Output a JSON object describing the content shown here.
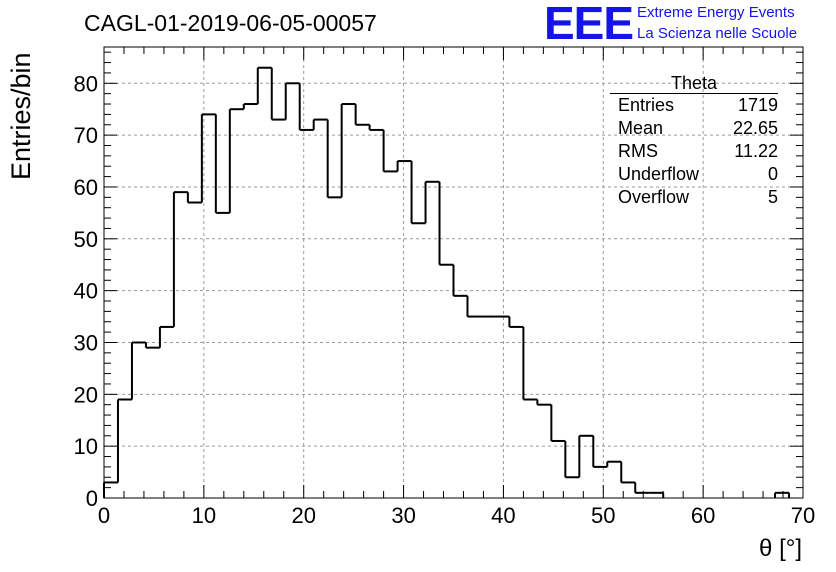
{
  "header": {
    "run_title": "CAGL-01-2019-06-05-00057",
    "logo_letters": "EEE",
    "logo_line1": "Extreme Energy Events",
    "logo_line2": "La Scienza nelle Scuole"
  },
  "stats_box": {
    "title": "Theta",
    "rows": [
      {
        "label": "Entries",
        "value": "1719"
      },
      {
        "label": "Mean",
        "value": "22.65"
      },
      {
        "label": "RMS",
        "value": "11.22"
      },
      {
        "label": "Underflow",
        "value": "0"
      },
      {
        "label": "Overflow",
        "value": "5"
      }
    ]
  },
  "chart_data": {
    "type": "bar",
    "xlabel": "θ [°]",
    "ylabel": "Entries/bin",
    "xlim": [
      0,
      70
    ],
    "ylim": [
      0,
      87
    ],
    "grid": true,
    "bin_width": 1.4,
    "x_ticks": [
      0,
      10,
      20,
      30,
      40,
      50,
      60,
      70
    ],
    "y_ticks": [
      0,
      10,
      20,
      30,
      40,
      50,
      60,
      70,
      80
    ],
    "values": [
      3,
      19,
      30,
      29,
      33,
      59,
      57,
      74,
      55,
      75,
      76,
      83,
      73,
      80,
      71,
      73,
      58,
      76,
      72,
      71,
      63,
      65,
      53,
      61,
      45,
      39,
      35,
      35,
      35,
      33,
      19,
      18,
      11,
      4,
      12,
      6,
      7,
      3,
      1,
      1,
      0,
      0,
      0,
      0,
      0,
      0,
      0,
      0,
      1,
      0
    ],
    "colors": {
      "line": "#000000",
      "grid": "#9a9a9a",
      "logo": "#1414e6"
    }
  }
}
